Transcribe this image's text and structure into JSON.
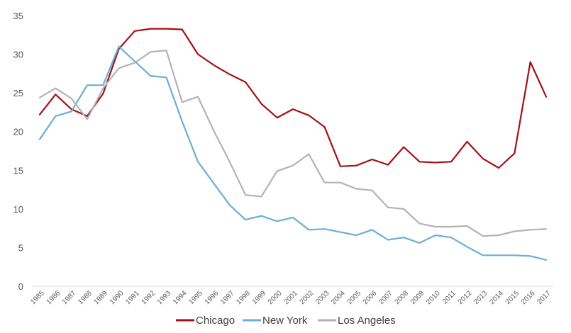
{
  "chart_data": {
    "type": "line",
    "title": "",
    "xlabel": "",
    "ylabel": "",
    "x": [
      "1985",
      "1986",
      "1987",
      "1988",
      "1989",
      "1990",
      "1991",
      "1992",
      "1993",
      "1994",
      "1995",
      "1996",
      "1997",
      "1998",
      "1999",
      "2000",
      "2001",
      "2002",
      "2003",
      "2004",
      "2005",
      "2006",
      "2007",
      "2008",
      "2009",
      "2010",
      "2011",
      "2012",
      "2013",
      "2014",
      "2015",
      "2016",
      "2017"
    ],
    "ylim": [
      0,
      35
    ],
    "yticks": [
      0,
      5,
      10,
      15,
      20,
      25,
      30,
      35
    ],
    "grid": false,
    "legend_position": "bottom",
    "series": [
      {
        "name": "Chicago",
        "color": "#a50f15",
        "values": [
          22.2,
          24.8,
          22.9,
          22.0,
          24.9,
          30.7,
          33.0,
          33.3,
          33.3,
          33.2,
          30.0,
          28.6,
          27.4,
          26.4,
          23.6,
          21.8,
          22.9,
          22.1,
          20.6,
          15.5,
          15.6,
          16.4,
          15.7,
          18.0,
          16.1,
          16.0,
          16.1,
          18.7,
          16.5,
          15.3,
          17.2,
          29.0,
          24.5
        ]
      },
      {
        "name": "New York",
        "color": "#6baed6",
        "values": [
          19.0,
          22.0,
          22.6,
          26.0,
          26.0,
          31.0,
          29.1,
          27.2,
          27.0,
          21.3,
          16.1,
          13.3,
          10.5,
          8.6,
          9.1,
          8.4,
          8.9,
          7.3,
          7.4,
          7.0,
          6.6,
          7.3,
          6.0,
          6.3,
          5.6,
          6.6,
          6.3,
          5.1,
          4.0,
          4.0,
          4.0,
          3.9,
          3.4
        ]
      },
      {
        "name": "Los Angeles",
        "color": "#b3b3b3",
        "values": [
          24.4,
          25.6,
          24.3,
          21.6,
          25.6,
          28.2,
          28.9,
          30.3,
          30.5,
          23.8,
          24.5,
          20.1,
          16.1,
          11.8,
          11.6,
          14.9,
          15.6,
          17.1,
          13.4,
          13.4,
          12.6,
          12.4,
          10.2,
          10.0,
          8.1,
          7.7,
          7.7,
          7.8,
          6.5,
          6.6,
          7.1,
          7.3,
          7.4
        ]
      }
    ]
  }
}
